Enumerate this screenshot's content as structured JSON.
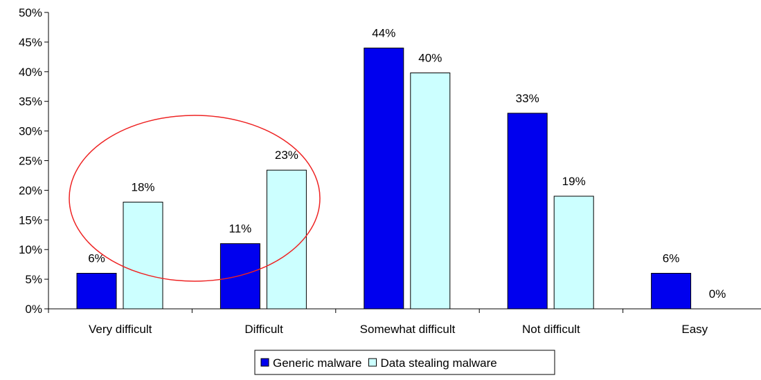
{
  "chart_data": {
    "type": "bar",
    "title": "",
    "xlabel": "",
    "ylabel": "",
    "categories": [
      "Very difficult",
      "Difficult",
      "Somewhat difficult",
      "Not difficult",
      "Easy"
    ],
    "series": [
      {
        "name": "Generic malware",
        "values": [
          6,
          11,
          44,
          33,
          6
        ],
        "labels": [
          "6%",
          "11%",
          "44%",
          "33%",
          "6%"
        ],
        "color": "#0000ee"
      },
      {
        "name": "Data stealing malware",
        "values": [
          18,
          23.4,
          39.8,
          19,
          0
        ],
        "labels": [
          "18%",
          "23%",
          "40%",
          "19%",
          "0%"
        ],
        "color": "#ccffff"
      }
    ],
    "ylim": [
      0,
      50
    ],
    "yticks": [
      0,
      5,
      10,
      15,
      20,
      25,
      30,
      35,
      40,
      45,
      50
    ],
    "ytick_labels": [
      "0%",
      "5%",
      "10%",
      "15%",
      "20%",
      "25%",
      "30%",
      "35%",
      "40%",
      "45%",
      "50%"
    ],
    "grid": false,
    "legend_position": "bottom",
    "annotation": {
      "shape": "ellipse",
      "color": "#ee2222",
      "around": [
        "Very difficult",
        "Difficult"
      ]
    }
  }
}
